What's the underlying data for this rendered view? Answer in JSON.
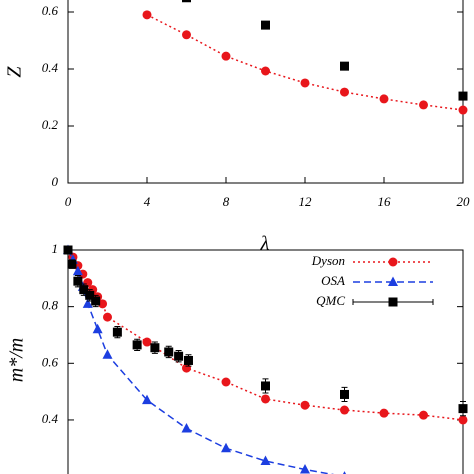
{
  "chart_data": [
    {
      "type": "line",
      "xlabel": "λ",
      "ylabel": "Z",
      "xlim": [
        0,
        20
      ],
      "ylim": [
        0,
        0.8
      ],
      "xticks": [
        0,
        4,
        8,
        12,
        16,
        20
      ],
      "yticks": [
        0,
        0.2,
        0.4,
        0.6
      ],
      "series": [
        {
          "color": "#e8161b",
          "line": "dotted",
          "marker": "circle",
          "x": [
            4,
            6,
            8,
            10,
            12,
            14,
            16,
            18,
            20
          ],
          "values": [
            0.59,
            0.52,
            0.445,
            0.393,
            0.351,
            0.319,
            0.295,
            0.274,
            0.256
          ]
        },
        {
          "color": "#000000",
          "line": "none",
          "marker": "square",
          "x": [
            6,
            10,
            14,
            20
          ],
          "values": [
            0.65,
            0.554,
            0.41,
            0.305
          ]
        }
      ]
    },
    {
      "type": "line",
      "ylabel": "m*/m",
      "xlim": [
        0,
        20
      ],
      "ylim": [
        0.2,
        1
      ],
      "yticks": [
        0.4,
        0.6,
        0.8,
        1
      ],
      "legend": "upper right",
      "series": [
        {
          "name": "Dyson",
          "color": "#e8161b",
          "line": "dotted",
          "marker": "circle",
          "x": [
            0,
            0.25,
            0.5,
            0.75,
            1,
            1.25,
            1.5,
            1.75,
            2,
            4,
            6,
            8,
            10,
            12,
            14,
            16,
            18,
            20
          ],
          "values": [
            1,
            0.975,
            0.945,
            0.915,
            0.885,
            0.86,
            0.835,
            0.81,
            0.763,
            0.675,
            0.583,
            0.534,
            0.474,
            0.452,
            0.435,
            0.424,
            0.417,
            0.4
          ]
        },
        {
          "name": "OSA",
          "color": "#1c3ee0",
          "line": "dashed",
          "marker": "triangle",
          "x": [
            0,
            0.25,
            0.5,
            0.75,
            1,
            1.5,
            2,
            4,
            6,
            8,
            10,
            12,
            14
          ],
          "values": [
            1,
            0.965,
            0.925,
            0.87,
            0.81,
            0.72,
            0.63,
            0.47,
            0.37,
            0.3,
            0.255,
            0.225,
            0.2
          ]
        },
        {
          "name": "QMC",
          "color": "#000000",
          "line": "none",
          "marker": "square",
          "x": [
            0,
            0.2,
            0.5,
            0.8,
            1.1,
            1.4,
            2.5,
            3.5,
            4.4,
            5.1,
            5.6,
            6.1,
            10,
            14,
            20
          ],
          "values": [
            1,
            0.95,
            0.89,
            0.86,
            0.84,
            0.82,
            0.71,
            0.665,
            0.655,
            0.64,
            0.625,
            0.61,
            0.52,
            0.49,
            0.44
          ],
          "errors": [
            0.01,
            0.015,
            0.02,
            0.02,
            0.02,
            0.02,
            0.02,
            0.02,
            0.02,
            0.02,
            0.02,
            0.02,
            0.025,
            0.025,
            0.025
          ]
        }
      ]
    }
  ]
}
